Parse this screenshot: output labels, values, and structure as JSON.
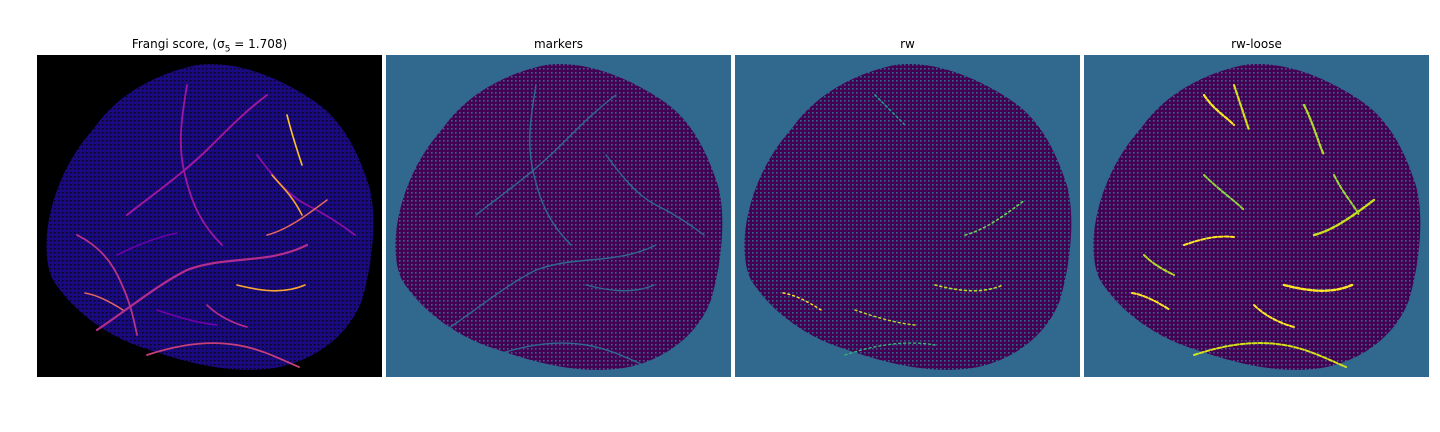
{
  "figure": {
    "panels": [
      {
        "title": "Frangi score, (σ5 = 1.708)",
        "title_parts": {
          "prefix": "Frangi score, (σ",
          "subscript": "5",
          "suffix": " = 1.708)"
        },
        "colormap": "plasma",
        "background": "#000000"
      },
      {
        "title": "markers",
        "colormap": "viridis",
        "background": "#30688e"
      },
      {
        "title": "rw",
        "colormap": "viridis",
        "background": "#30688e"
      },
      {
        "title": "rw-loose",
        "colormap": "viridis",
        "background": "#30688e"
      }
    ]
  }
}
